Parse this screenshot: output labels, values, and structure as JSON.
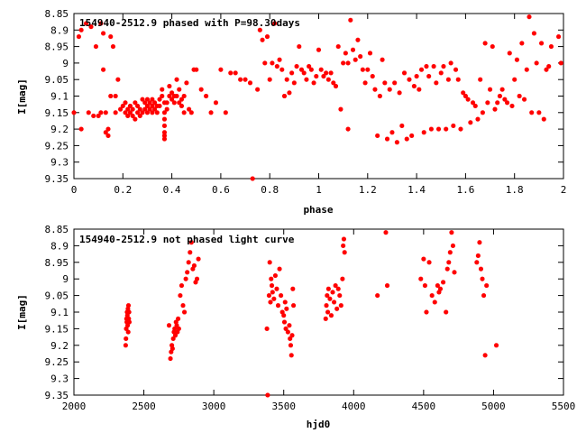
{
  "chart_data": [
    {
      "type": "scatter",
      "title": "154940-2512.9 phased with P=98.30days",
      "xlabel": "phase",
      "ylabel": "I[mag]",
      "xlim": [
        0,
        2
      ],
      "ylim": [
        8.85,
        9.35
      ],
      "y_inverted": true,
      "x_ticks": [
        "0",
        "0.2",
        "0.4",
        "0.6",
        "0.8",
        "1",
        "1.2",
        "1.4",
        "1.6",
        "1.8",
        "2"
      ],
      "x_tick_values": [
        0,
        0.2,
        0.4,
        0.6,
        0.8,
        1.0,
        1.2,
        1.4,
        1.6,
        1.8,
        2.0
      ],
      "y_ticks": [
        "8.85",
        "8.9",
        "8.95",
        "9",
        "9.05",
        "9.1",
        "9.15",
        "9.2",
        "9.25",
        "9.3",
        "9.35"
      ],
      "y_tick_values": [
        8.85,
        8.9,
        8.95,
        9.0,
        9.05,
        9.1,
        9.15,
        9.2,
        9.25,
        9.3,
        9.35
      ],
      "marker_color": "#ff0000",
      "points": [
        [
          0.0,
          9.15
        ],
        [
          0.02,
          8.92
        ],
        [
          0.03,
          8.9
        ],
        [
          0.03,
          9.2
        ],
        [
          0.05,
          8.88
        ],
        [
          0.06,
          9.15
        ],
        [
          0.07,
          8.89
        ],
        [
          0.08,
          9.16
        ],
        [
          0.09,
          8.95
        ],
        [
          0.1,
          9.16
        ],
        [
          0.11,
          8.88
        ],
        [
          0.11,
          9.15
        ],
        [
          0.12,
          8.91
        ],
        [
          0.12,
          9.02
        ],
        [
          0.13,
          9.15
        ],
        [
          0.13,
          9.21
        ],
        [
          0.14,
          9.2
        ],
        [
          0.14,
          9.22
        ],
        [
          0.15,
          8.92
        ],
        [
          0.15,
          9.1
        ],
        [
          0.16,
          8.95
        ],
        [
          0.17,
          9.1
        ],
        [
          0.17,
          9.15
        ],
        [
          0.18,
          9.05
        ],
        [
          0.19,
          9.14
        ],
        [
          0.2,
          9.13
        ],
        [
          0.21,
          9.15
        ],
        [
          0.21,
          9.12
        ],
        [
          0.22,
          9.16
        ],
        [
          0.22,
          9.14
        ],
        [
          0.23,
          9.15
        ],
        [
          0.23,
          9.13
        ],
        [
          0.24,
          9.16
        ],
        [
          0.24,
          9.14
        ],
        [
          0.25,
          9.17
        ],
        [
          0.25,
          9.12
        ],
        [
          0.26,
          9.15
        ],
        [
          0.26,
          9.13
        ],
        [
          0.27,
          9.16
        ],
        [
          0.27,
          9.14
        ],
        [
          0.28,
          9.15
        ],
        [
          0.28,
          9.11
        ],
        [
          0.29,
          9.12
        ],
        [
          0.29,
          9.14
        ],
        [
          0.3,
          9.13
        ],
        [
          0.3,
          9.11
        ],
        [
          0.3,
          9.15
        ],
        [
          0.31,
          9.12
        ],
        [
          0.31,
          9.14
        ],
        [
          0.32,
          9.13
        ],
        [
          0.32,
          9.11
        ],
        [
          0.32,
          9.15
        ],
        [
          0.33,
          9.12
        ],
        [
          0.33,
          9.14
        ],
        [
          0.34,
          9.13
        ],
        [
          0.34,
          9.15
        ],
        [
          0.35,
          9.11
        ],
        [
          0.35,
          9.13
        ],
        [
          0.36,
          9.1
        ],
        [
          0.36,
          9.08
        ],
        [
          0.37,
          9.12
        ],
        [
          0.37,
          9.15
        ],
        [
          0.37,
          9.17
        ],
        [
          0.37,
          9.19
        ],
        [
          0.37,
          9.21
        ],
        [
          0.37,
          9.22
        ],
        [
          0.37,
          9.23
        ],
        [
          0.38,
          9.12
        ],
        [
          0.38,
          9.14
        ],
        [
          0.39,
          9.07
        ],
        [
          0.39,
          9.1
        ],
        [
          0.4,
          9.11
        ],
        [
          0.4,
          9.09
        ],
        [
          0.41,
          9.1
        ],
        [
          0.41,
          9.12
        ],
        [
          0.42,
          9.05
        ],
        [
          0.42,
          9.1
        ],
        [
          0.43,
          9.12
        ],
        [
          0.43,
          9.08
        ],
        [
          0.44,
          9.11
        ],
        [
          0.44,
          9.13
        ],
        [
          0.45,
          9.1
        ],
        [
          0.45,
          9.15
        ],
        [
          0.46,
          9.06
        ],
        [
          0.47,
          9.14
        ],
        [
          0.48,
          9.15
        ],
        [
          0.49,
          9.02
        ],
        [
          0.5,
          9.02
        ],
        [
          0.52,
          9.08
        ],
        [
          0.54,
          9.1
        ],
        [
          0.56,
          9.15
        ],
        [
          0.58,
          9.12
        ],
        [
          0.6,
          9.02
        ],
        [
          0.62,
          9.15
        ],
        [
          0.64,
          9.03
        ],
        [
          0.66,
          9.03
        ],
        [
          0.68,
          9.05
        ],
        [
          0.7,
          9.05
        ],
        [
          0.72,
          9.06
        ],
        [
          0.73,
          9.35
        ],
        [
          0.75,
          9.08
        ],
        [
          0.76,
          8.9
        ],
        [
          0.77,
          8.93
        ],
        [
          0.78,
          9.0
        ],
        [
          0.79,
          8.92
        ],
        [
          0.8,
          9.05
        ],
        [
          0.81,
          9.0
        ],
        [
          0.82,
          8.88
        ],
        [
          0.83,
          9.01
        ],
        [
          0.84,
          8.99
        ],
        [
          0.85,
          9.02
        ],
        [
          0.86,
          9.1
        ],
        [
          0.87,
          9.05
        ],
        [
          0.88,
          9.09
        ],
        [
          0.89,
          9.03
        ],
        [
          0.9,
          9.06
        ],
        [
          0.91,
          9.01
        ],
        [
          0.92,
          8.95
        ],
        [
          0.93,
          9.02
        ],
        [
          0.94,
          9.03
        ],
        [
          0.95,
          9.05
        ],
        [
          0.96,
          9.01
        ],
        [
          0.97,
          9.02
        ],
        [
          0.98,
          9.06
        ],
        [
          0.99,
          9.04
        ],
        [
          1.0,
          8.96
        ],
        [
          1.01,
          9.02
        ],
        [
          1.02,
          9.04
        ],
        [
          1.03,
          9.03
        ],
        [
          1.04,
          9.05
        ],
        [
          1.05,
          9.03
        ],
        [
          1.06,
          9.06
        ],
        [
          1.07,
          9.07
        ],
        [
          1.08,
          8.95
        ],
        [
          1.09,
          9.14
        ],
        [
          1.1,
          9.0
        ],
        [
          1.11,
          8.97
        ],
        [
          1.12,
          9.0
        ],
        [
          1.12,
          9.2
        ],
        [
          1.13,
          8.87
        ],
        [
          1.14,
          8.96
        ],
        [
          1.15,
          8.99
        ],
        [
          1.16,
          8.93
        ],
        [
          1.17,
          8.98
        ],
        [
          1.18,
          9.02
        ],
        [
          1.19,
          9.06
        ],
        [
          1.2,
          9.02
        ],
        [
          1.21,
          8.97
        ],
        [
          1.22,
          9.04
        ],
        [
          1.23,
          9.08
        ],
        [
          1.24,
          9.22
        ],
        [
          1.25,
          9.1
        ],
        [
          1.26,
          8.99
        ],
        [
          1.27,
          9.06
        ],
        [
          1.28,
          9.23
        ],
        [
          1.29,
          9.08
        ],
        [
          1.3,
          9.21
        ],
        [
          1.31,
          9.06
        ],
        [
          1.32,
          9.24
        ],
        [
          1.33,
          9.09
        ],
        [
          1.34,
          9.19
        ],
        [
          1.35,
          9.03
        ],
        [
          1.36,
          9.23
        ],
        [
          1.37,
          9.05
        ],
        [
          1.38,
          9.22
        ],
        [
          1.39,
          9.07
        ],
        [
          1.4,
          9.04
        ],
        [
          1.41,
          9.08
        ],
        [
          1.42,
          9.02
        ],
        [
          1.43,
          9.21
        ],
        [
          1.44,
          9.01
        ],
        [
          1.45,
          9.04
        ],
        [
          1.46,
          9.2
        ],
        [
          1.47,
          9.01
        ],
        [
          1.48,
          9.06
        ],
        [
          1.49,
          9.2
        ],
        [
          1.5,
          9.03
        ],
        [
          1.51,
          9.01
        ],
        [
          1.52,
          9.2
        ],
        [
          1.53,
          9.05
        ],
        [
          1.54,
          9.0
        ],
        [
          1.55,
          9.19
        ],
        [
          1.56,
          9.02
        ],
        [
          1.57,
          9.05
        ],
        [
          1.58,
          9.2
        ],
        [
          1.59,
          9.09
        ],
        [
          1.6,
          9.1
        ],
        [
          1.61,
          9.11
        ],
        [
          1.62,
          9.18
        ],
        [
          1.63,
          9.12
        ],
        [
          1.64,
          9.13
        ],
        [
          1.65,
          9.17
        ],
        [
          1.66,
          9.05
        ],
        [
          1.67,
          9.15
        ],
        [
          1.68,
          8.94
        ],
        [
          1.69,
          9.12
        ],
        [
          1.7,
          9.08
        ],
        [
          1.71,
          8.95
        ],
        [
          1.72,
          9.14
        ],
        [
          1.73,
          9.12
        ],
        [
          1.74,
          9.1
        ],
        [
          1.75,
          9.08
        ],
        [
          1.76,
          9.11
        ],
        [
          1.77,
          9.12
        ],
        [
          1.78,
          8.97
        ],
        [
          1.79,
          9.13
        ],
        [
          1.8,
          9.05
        ],
        [
          1.81,
          8.99
        ],
        [
          1.82,
          9.1
        ],
        [
          1.83,
          8.94
        ],
        [
          1.84,
          9.11
        ],
        [
          1.85,
          9.02
        ],
        [
          1.86,
          8.86
        ],
        [
          1.87,
          9.15
        ],
        [
          1.88,
          8.91
        ],
        [
          1.89,
          9.0
        ],
        [
          1.9,
          9.15
        ],
        [
          1.91,
          8.94
        ],
        [
          1.92,
          9.17
        ],
        [
          1.93,
          9.02
        ],
        [
          1.94,
          9.01
        ],
        [
          1.95,
          8.95
        ],
        [
          1.98,
          8.92
        ],
        [
          1.99,
          9.0
        ]
      ]
    },
    {
      "type": "scatter",
      "title": "154940-2512.9 not phased light curve",
      "xlabel": "hjd0",
      "ylabel": "I[mag]",
      "xlim": [
        2000,
        5500
      ],
      "ylim": [
        8.85,
        9.35
      ],
      "y_inverted": true,
      "x_ticks": [
        "2000",
        "2500",
        "3000",
        "3500",
        "4000",
        "4500",
        "5000",
        "5500"
      ],
      "x_tick_values": [
        2000,
        2500,
        3000,
        3500,
        4000,
        4500,
        5000,
        5500
      ],
      "y_ticks": [
        "8.85",
        "8.9",
        "8.95",
        "9",
        "9.05",
        "9.1",
        "9.15",
        "9.2",
        "9.25",
        "9.3",
        "9.35"
      ],
      "y_tick_values": [
        8.85,
        8.9,
        8.95,
        9.0,
        9.05,
        9.1,
        9.15,
        9.2,
        9.25,
        9.3,
        9.35
      ],
      "marker_color": "#ff0000",
      "points": [
        [
          2370,
          9.2
        ],
        [
          2372,
          9.18
        ],
        [
          2374,
          9.15
        ],
        [
          2376,
          9.12
        ],
        [
          2378,
          9.13
        ],
        [
          2380,
          9.1
        ],
        [
          2382,
          9.11
        ],
        [
          2384,
          9.14
        ],
        [
          2386,
          9.09
        ],
        [
          2388,
          9.16
        ],
        [
          2390,
          9.08
        ],
        [
          2392,
          9.12
        ],
        [
          2394,
          9.1
        ],
        [
          2396,
          9.13
        ],
        [
          2680,
          9.14
        ],
        [
          2690,
          9.24
        ],
        [
          2695,
          9.22
        ],
        [
          2700,
          9.2
        ],
        [
          2705,
          9.21
        ],
        [
          2710,
          9.18
        ],
        [
          2715,
          9.16
        ],
        [
          2720,
          9.15
        ],
        [
          2725,
          9.17
        ],
        [
          2730,
          9.13
        ],
        [
          2735,
          9.14
        ],
        [
          2740,
          9.16
        ],
        [
          2745,
          9.12
        ],
        [
          2750,
          9.15
        ],
        [
          2760,
          9.05
        ],
        [
          2770,
          9.02
        ],
        [
          2780,
          9.08
        ],
        [
          2790,
          9.1
        ],
        [
          2800,
          9.0
        ],
        [
          2810,
          8.98
        ],
        [
          2820,
          8.95
        ],
        [
          2830,
          8.92
        ],
        [
          2840,
          8.89
        ],
        [
          2850,
          8.97
        ],
        [
          2860,
          8.96
        ],
        [
          2870,
          9.01
        ],
        [
          2880,
          9.0
        ],
        [
          2890,
          8.94
        ],
        [
          3380,
          9.15
        ],
        [
          3395,
          9.05
        ],
        [
          3400,
          8.95
        ],
        [
          3405,
          9.07
        ],
        [
          3410,
          9.0
        ],
        [
          3415,
          9.02
        ],
        [
          3420,
          9.04
        ],
        [
          3430,
          9.06
        ],
        [
          3440,
          8.99
        ],
        [
          3450,
          9.03
        ],
        [
          3460,
          9.08
        ],
        [
          3470,
          8.97
        ],
        [
          3480,
          9.05
        ],
        [
          3490,
          9.1
        ],
        [
          3500,
          9.11
        ],
        [
          3505,
          9.13
        ],
        [
          3510,
          9.07
        ],
        [
          3515,
          9.15
        ],
        [
          3520,
          9.09
        ],
        [
          3530,
          9.16
        ],
        [
          3540,
          9.14
        ],
        [
          3545,
          9.18
        ],
        [
          3550,
          9.2
        ],
        [
          3555,
          9.23
        ],
        [
          3560,
          9.17
        ],
        [
          3565,
          9.03
        ],
        [
          3570,
          9.08
        ],
        [
          3385,
          9.35
        ],
        [
          3800,
          9.12
        ],
        [
          3805,
          9.08
        ],
        [
          3810,
          9.05
        ],
        [
          3815,
          9.1
        ],
        [
          3820,
          9.03
        ],
        [
          3830,
          9.06
        ],
        [
          3840,
          9.11
        ],
        [
          3850,
          9.04
        ],
        [
          3860,
          9.07
        ],
        [
          3870,
          9.02
        ],
        [
          3880,
          9.09
        ],
        [
          3890,
          9.03
        ],
        [
          3900,
          9.05
        ],
        [
          3910,
          9.08
        ],
        [
          3920,
          9.0
        ],
        [
          3925,
          8.9
        ],
        [
          3930,
          8.88
        ],
        [
          3935,
          8.92
        ],
        [
          4170,
          9.05
        ],
        [
          4230,
          8.86
        ],
        [
          4240,
          9.02
        ],
        [
          4480,
          9.0
        ],
        [
          4500,
          8.94
        ],
        [
          4510,
          9.02
        ],
        [
          4520,
          9.1
        ],
        [
          4540,
          8.95
        ],
        [
          4560,
          9.05
        ],
        [
          4580,
          9.07
        ],
        [
          4600,
          9.02
        ],
        [
          4610,
          9.04
        ],
        [
          4620,
          9.03
        ],
        [
          4640,
          9.01
        ],
        [
          4660,
          9.1
        ],
        [
          4670,
          8.97
        ],
        [
          4680,
          8.95
        ],
        [
          4690,
          8.92
        ],
        [
          4700,
          8.86
        ],
        [
          4710,
          8.9
        ],
        [
          4720,
          8.98
        ],
        [
          4880,
          8.95
        ],
        [
          4890,
          8.93
        ],
        [
          4900,
          8.89
        ],
        [
          4910,
          8.97
        ],
        [
          4920,
          9.0
        ],
        [
          4930,
          9.05
        ],
        [
          4940,
          9.23
        ],
        [
          4950,
          9.02
        ],
        [
          5020,
          9.2
        ]
      ]
    }
  ]
}
